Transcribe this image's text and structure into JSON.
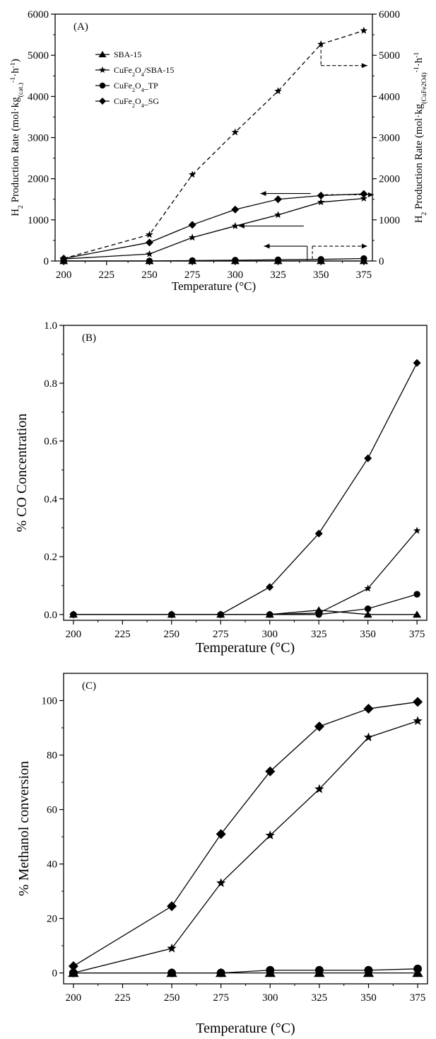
{
  "chart_data": [
    {
      "type": "line",
      "panel_label": "(A)",
      "xlabel": "Temperature (°C)",
      "ylabel": {
        "prefix": "H",
        "sub1": "2",
        "mid": " Production Rate (mol·kg",
        "sub2": "(cat.)",
        "sup": "-1",
        "tail": "·h",
        "sup2": "-1",
        "end": ")"
      },
      "ylabel_right": {
        "prefix": "H",
        "sub1": "2",
        "mid": " Production Rate (mol·kg",
        "sub2": "(CuFe2O4)",
        "sup": "-1",
        "tail": "·h",
        "sup2": "-1"
      },
      "xlim": [
        195,
        380
      ],
      "ylim": [
        0,
        6000
      ],
      "xticks": [
        200,
        225,
        250,
        275,
        300,
        325,
        350,
        375
      ],
      "yticks": [
        0,
        1000,
        2000,
        3000,
        4000,
        5000,
        6000
      ],
      "x": [
        200,
        250,
        275,
        300,
        325,
        350,
        375
      ],
      "legend": [
        {
          "label": "SBA-15",
          "marker": "triangle"
        },
        {
          "label_html": [
            "CuFe",
            "2",
            "O",
            "4",
            "/SBA-15"
          ],
          "marker": "star"
        },
        {
          "label_html": [
            "CuFe",
            "2",
            "O",
            "4",
            "_TP"
          ],
          "marker": "circle"
        },
        {
          "label_html": [
            "CuFe",
            "2",
            "O",
            "4",
            "_SG"
          ],
          "marker": "diamond"
        }
      ],
      "series": [
        {
          "marker": "triangle",
          "style": "solid",
          "values": [
            0,
            0,
            0,
            0,
            0,
            0,
            0
          ]
        },
        {
          "marker": "star",
          "style": "solid",
          "values": [
            50,
            170,
            570,
            850,
            1120,
            1430,
            1520
          ]
        },
        {
          "marker": "circle",
          "style": "solid",
          "values": [
            0,
            0,
            10,
            20,
            30,
            40,
            60
          ]
        },
        {
          "marker": "diamond",
          "style": "solid",
          "values": [
            60,
            450,
            880,
            1250,
            1500,
            1590,
            1630
          ]
        },
        {
          "marker": "star",
          "style": "dashed",
          "values": [
            60,
            640,
            2100,
            3130,
            4130,
            5270,
            5600
          ]
        }
      ]
    },
    {
      "type": "line",
      "panel_label": "(B)",
      "xlabel": "Temperature (°C)",
      "ylabel": "% CO Concentration",
      "xlim": [
        195,
        380
      ],
      "ylim": [
        -0.02,
        1.0
      ],
      "xticks": [
        200,
        225,
        250,
        275,
        300,
        325,
        350,
        375
      ],
      "yticks": [
        0.0,
        0.2,
        0.4,
        0.6,
        0.8,
        1.0
      ],
      "ytick_labels": [
        "0.0",
        "0.2",
        "0.4",
        "0.6",
        "0.8",
        "1.0"
      ],
      "x": [
        200,
        250,
        275,
        300,
        325,
        350,
        375
      ],
      "series": [
        {
          "marker": "triangle",
          "values": [
            0,
            0,
            0,
            0,
            0.015,
            0,
            0
          ]
        },
        {
          "marker": "star",
          "values": [
            0,
            0,
            0,
            0,
            0.005,
            0.09,
            0.29
          ]
        },
        {
          "marker": "circle",
          "values": [
            0,
            0,
            0,
            0,
            0,
            0.02,
            0.07
          ]
        },
        {
          "marker": "diamond",
          "values": [
            0,
            0,
            0,
            0.095,
            0.28,
            0.54,
            0.87
          ]
        }
      ]
    },
    {
      "type": "line",
      "panel_label": "(C)",
      "xlabel": "Temperature (°C)",
      "ylabel": "% Methanol conversion",
      "xlim": [
        195,
        380
      ],
      "ylim": [
        -4,
        110
      ],
      "xticks": [
        200,
        225,
        250,
        275,
        300,
        325,
        350,
        375
      ],
      "yticks": [
        0,
        20,
        40,
        60,
        80,
        100
      ],
      "x": [
        200,
        250,
        275,
        300,
        325,
        350,
        375
      ],
      "series": [
        {
          "marker": "triangle",
          "values": [
            0,
            0,
            0,
            0,
            0,
            0,
            0
          ]
        },
        {
          "marker": "star",
          "values": [
            0,
            9,
            33,
            50.5,
            67.5,
            86.5,
            92.5
          ]
        },
        {
          "marker": "circle",
          "values": [
            0,
            0,
            0,
            1,
            1,
            1,
            1.5
          ]
        },
        {
          "marker": "diamond",
          "values": [
            2.5,
            24.5,
            51,
            74,
            90.5,
            97,
            99.5
          ]
        }
      ]
    }
  ]
}
